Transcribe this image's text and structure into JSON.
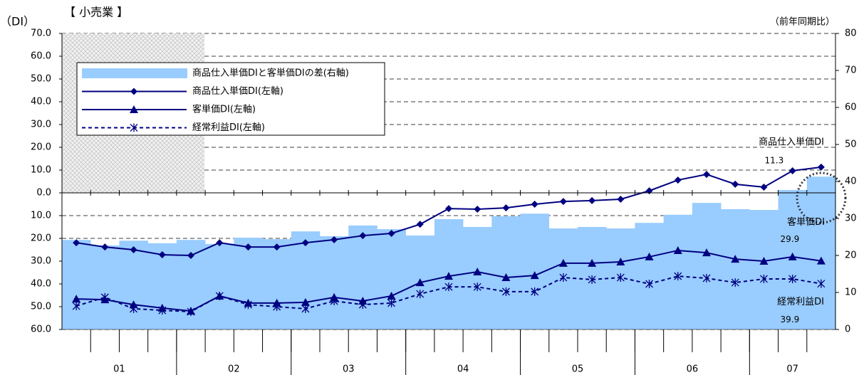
{
  "chart_data": {
    "type": "combo",
    "title": "【 小売業 】",
    "y_label": "（DI）",
    "y2_label": "（前年同期比）",
    "categories": [
      null,
      "01",
      null,
      null,
      null,
      "02",
      null,
      null,
      null,
      "03",
      null,
      null,
      null,
      "04",
      null,
      null,
      null,
      "05",
      null,
      null,
      null,
      "06",
      null,
      null,
      null,
      "07",
      null
    ],
    "ylim": [
      -60,
      70
    ],
    "yticks": [
      {
        "value": 70,
        "label": "70.0"
      },
      {
        "value": 60,
        "label": "60.0"
      },
      {
        "value": 50,
        "label": "50.0"
      },
      {
        "value": 40,
        "label": "40.0"
      },
      {
        "value": 30,
        "label": "30.0"
      },
      {
        "value": 20,
        "label": "20.0"
      },
      {
        "value": 10,
        "label": "10.0"
      },
      {
        "value": 0,
        "label": "0.0"
      },
      {
        "value": -10,
        "label": "10.0"
      },
      {
        "value": -20,
        "label": "20.0"
      },
      {
        "value": -30,
        "label": "30.0"
      },
      {
        "value": -40,
        "label": "40.0"
      },
      {
        "value": -50,
        "label": "50.0"
      },
      {
        "value": -60,
        "label": "60.0"
      }
    ],
    "y2lim": [
      0,
      80
    ],
    "y2ticks": [
      0,
      10,
      20,
      30,
      40,
      50,
      60,
      70,
      80
    ],
    "grid": true,
    "legend": "upper left",
    "series": [
      {
        "name": "商品仕入単価DIと客単価DIの差(右軸)",
        "type": "bar",
        "axis": "y2",
        "color": "#99ccff",
        "values": [
          24.2,
          22.7,
          24.0,
          23.3,
          24.2,
          23.1,
          24.8,
          24.4,
          26.5,
          25.2,
          28.1,
          27.1,
          25.4,
          29.8,
          27.7,
          30.6,
          31.3,
          27.3,
          27.7,
          27.3,
          28.8,
          31.0,
          34.2,
          32.5,
          32.3,
          37.7,
          41.3
        ]
      },
      {
        "name": "商品仕入単価DI(左軸)",
        "type": "line",
        "marker": "diamond",
        "color": "#000080",
        "label": "商品仕入単価DI",
        "values": [
          -21.9,
          -23.8,
          -25.0,
          -27.2,
          -27.5,
          -21.9,
          -23.8,
          -23.8,
          -21.9,
          -20.6,
          -18.8,
          -17.8,
          -13.8,
          -6.9,
          -7.2,
          -6.6,
          -5.0,
          -3.8,
          -3.4,
          -2.8,
          0.9,
          5.6,
          8.1,
          3.8,
          2.5,
          9.7,
          11.3
        ],
        "value_labels": [
          null,
          null,
          null,
          null,
          null,
          null,
          null,
          null,
          null,
          null,
          null,
          null,
          null,
          null,
          null,
          null,
          null,
          null,
          null,
          null,
          null,
          null,
          null,
          null,
          null,
          null,
          "11.3"
        ]
      },
      {
        "name": "客単価DI(左軸)",
        "type": "line",
        "marker": "triangle",
        "color": "#000080",
        "label": "客単価DI",
        "values": [
          -46.6,
          -46.9,
          -49.1,
          -50.6,
          -51.9,
          -45.3,
          -48.4,
          -48.4,
          -48.1,
          -45.9,
          -47.5,
          -45.3,
          -39.4,
          -36.6,
          -34.7,
          -37.2,
          -36.3,
          -30.9,
          -30.9,
          -30.3,
          -28.1,
          -25.3,
          -26.3,
          -29.1,
          -30.0,
          -28.1,
          -29.9
        ],
        "value_labels": [
          null,
          null,
          null,
          null,
          null,
          null,
          null,
          null,
          null,
          null,
          null,
          null,
          null,
          null,
          null,
          null,
          null,
          null,
          null,
          null,
          null,
          null,
          null,
          null,
          null,
          null,
          "29.9"
        ]
      },
      {
        "name": "経常利益DI(左軸)",
        "type": "line",
        "marker": "asterisk",
        "dash": true,
        "color": "#000080",
        "label": "経常利益DI",
        "values": [
          -49.7,
          -45.9,
          -50.9,
          -51.6,
          -52.2,
          -45.3,
          -49.1,
          -50.0,
          -50.9,
          -47.5,
          -49.1,
          -48.4,
          -44.4,
          -41.3,
          -41.3,
          -43.4,
          -43.4,
          -37.2,
          -38.1,
          -37.2,
          -40.0,
          -36.6,
          -37.5,
          -39.4,
          -37.8,
          -37.8,
          -39.9
        ],
        "value_labels": [
          null,
          null,
          null,
          null,
          null,
          null,
          null,
          null,
          null,
          null,
          null,
          null,
          null,
          null,
          null,
          null,
          null,
          null,
          null,
          null,
          null,
          null,
          null,
          null,
          null,
          null,
          "39.9"
        ]
      }
    ]
  }
}
